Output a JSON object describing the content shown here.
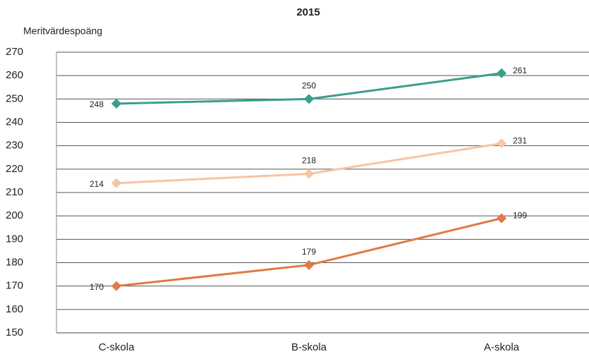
{
  "chart_data": {
    "type": "line",
    "title": "2015",
    "y_label": "Meritvärdespoäng",
    "categories": [
      "C-skola",
      "B-skola",
      "A-skola"
    ],
    "series": [
      {
        "color": "#3a9e8c",
        "values": [
          248,
          250,
          261
        ]
      },
      {
        "color": "#f6c5a2",
        "values": [
          214,
          218,
          231
        ]
      },
      {
        "color": "#e07b45",
        "values": [
          170,
          179,
          199
        ]
      }
    ],
    "ylim": [
      150,
      270
    ],
    "yticks": [
      150,
      160,
      170,
      180,
      190,
      200,
      210,
      220,
      230,
      240,
      250,
      260,
      270
    ],
    "grid": true
  }
}
